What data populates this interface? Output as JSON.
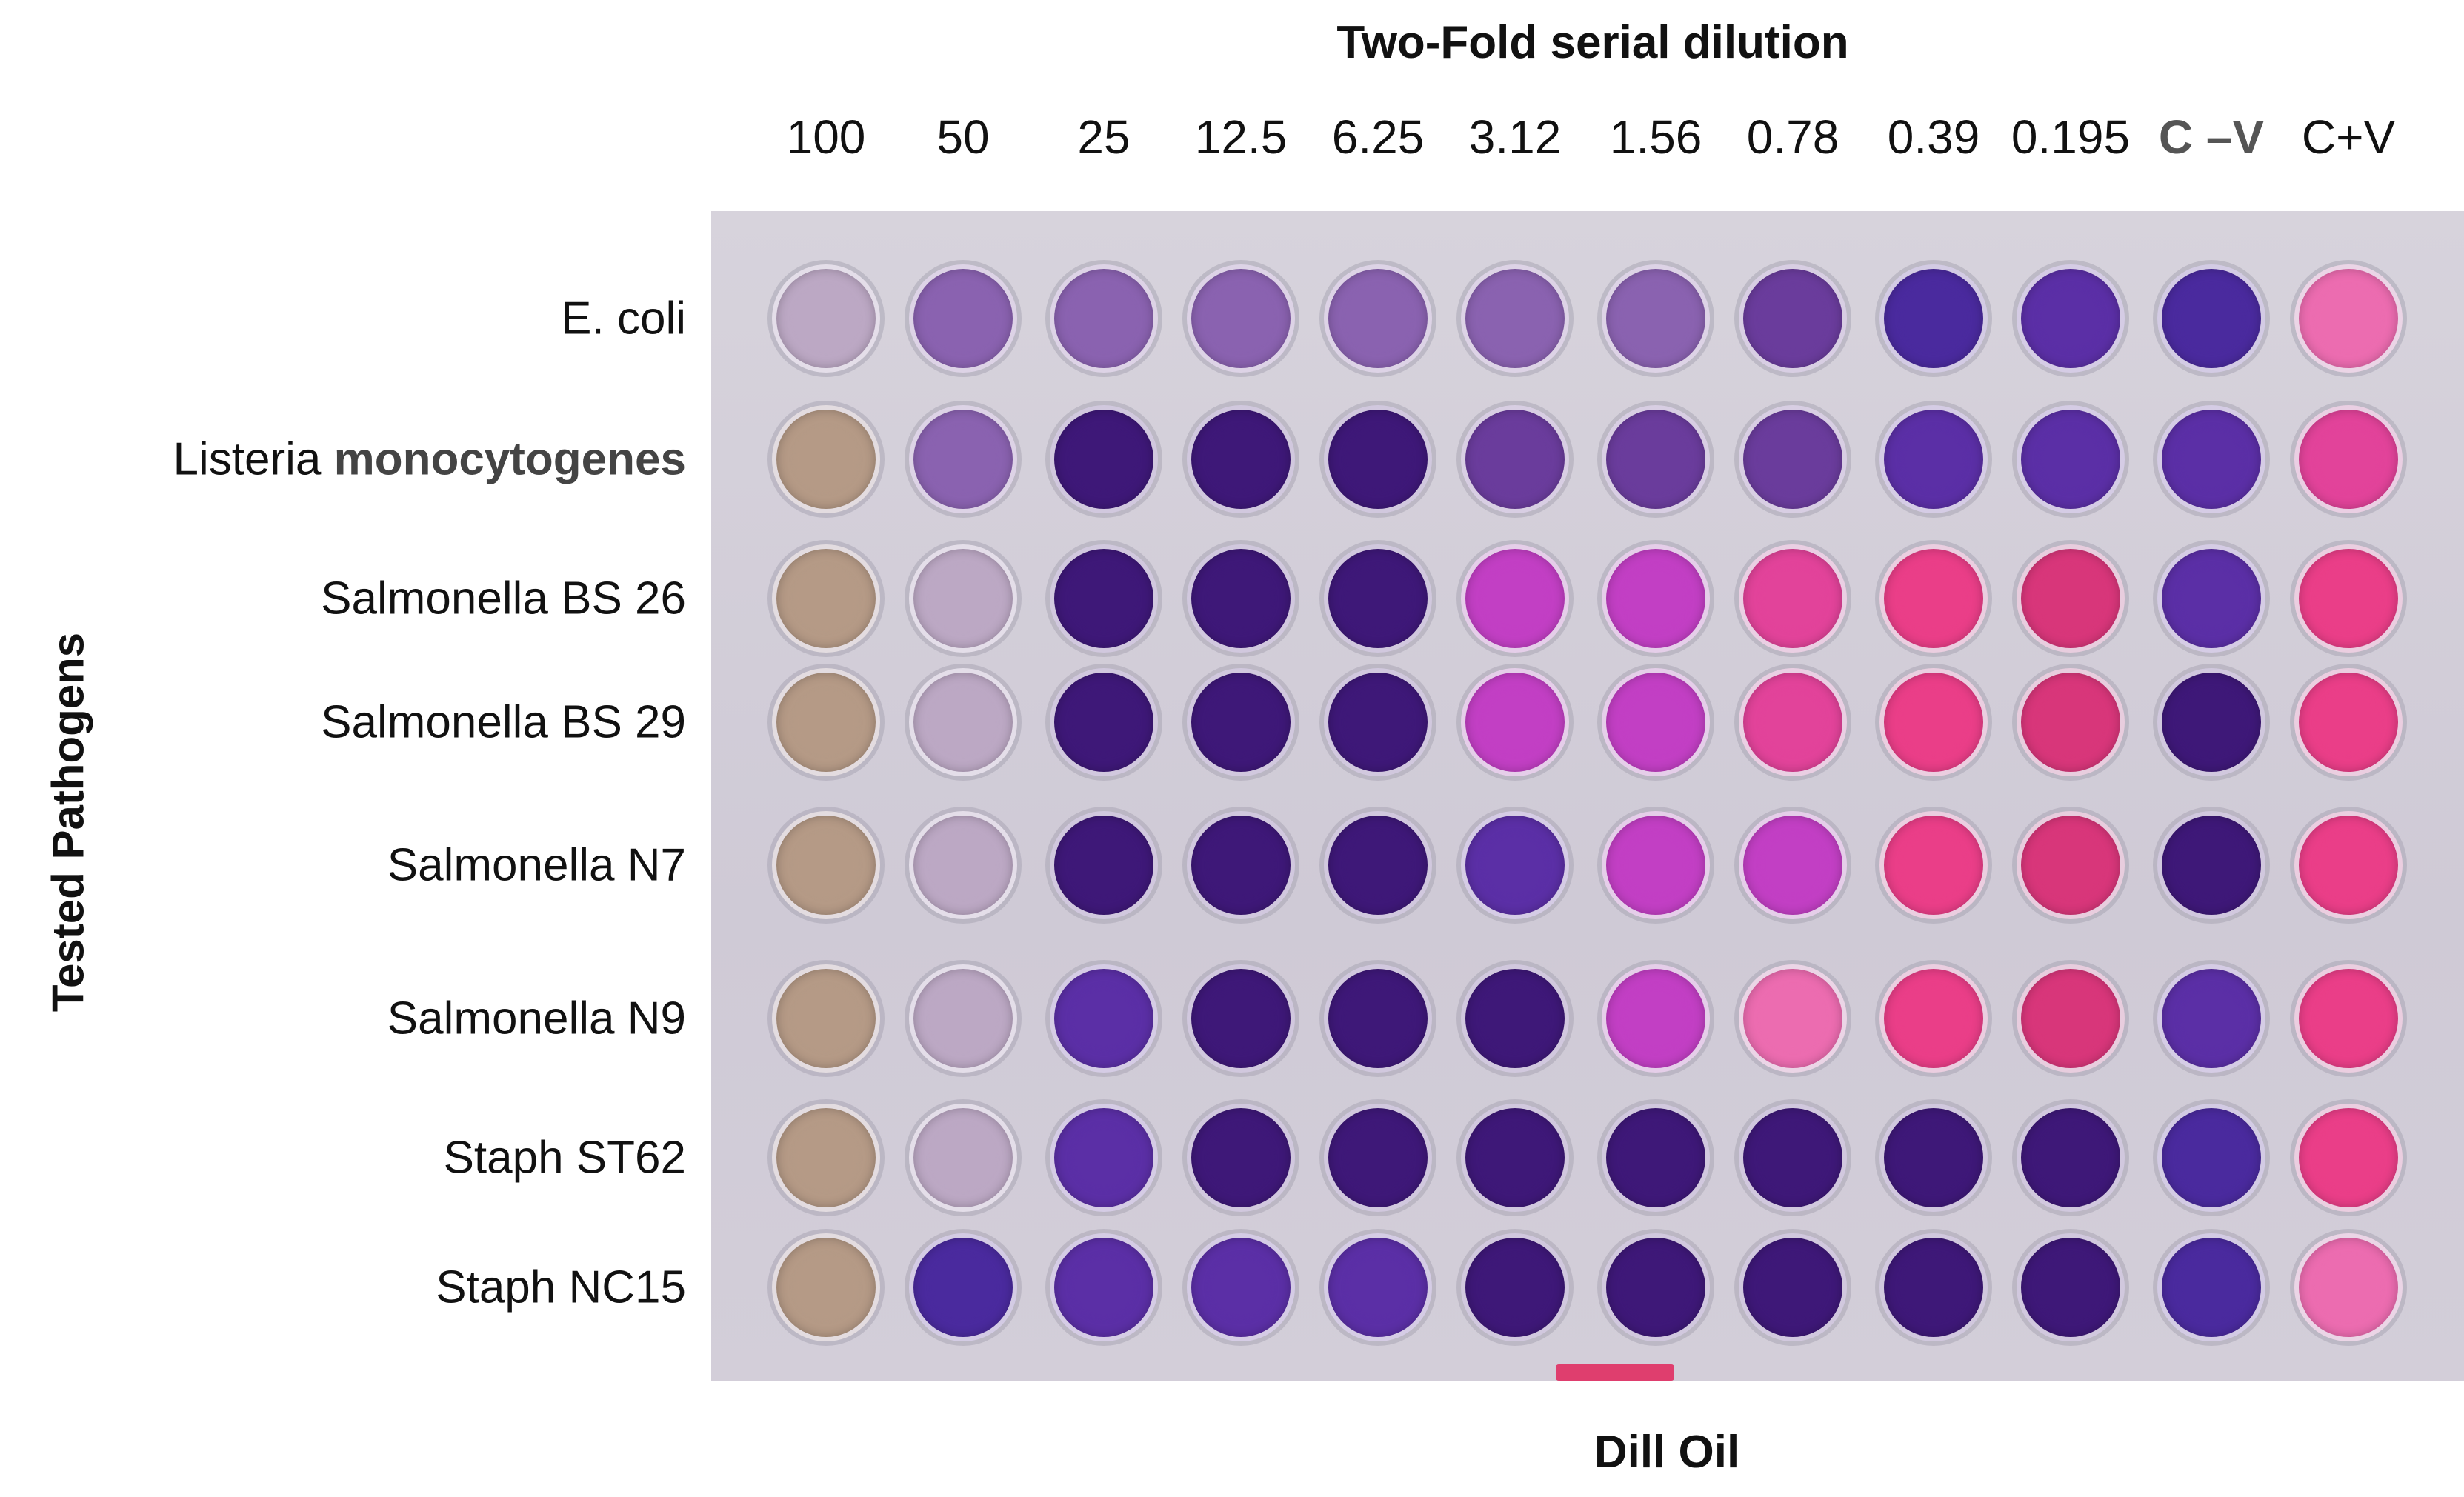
{
  "header": {
    "title": "Two-Fold serial dilution"
  },
  "columns": [
    {
      "label": "100",
      "control": false
    },
    {
      "label": "50",
      "control": false
    },
    {
      "label": "25",
      "control": false
    },
    {
      "label": "12.5",
      "control": false
    },
    {
      "label": "6.25",
      "control": false
    },
    {
      "label": "3.12",
      "control": false
    },
    {
      "label": "1.56",
      "control": false
    },
    {
      "label": "0.78",
      "control": false
    },
    {
      "label": "0.39",
      "control": false
    },
    {
      "label": "0.195",
      "control": false
    },
    {
      "label": "C –V",
      "control": true
    },
    {
      "label": "C+V",
      "control": false
    }
  ],
  "axis": {
    "y_label": "Tested Pathogens",
    "x_label": "Dill Oil"
  },
  "rows": [
    {
      "label": "E. coli",
      "label_b": ""
    },
    {
      "label": "Listeria ",
      "label_b": "monocytogenes"
    },
    {
      "label": "Salmonella  BS 26",
      "label_b": ""
    },
    {
      "label": "Salmonella  BS 29",
      "label_b": ""
    },
    {
      "label": "Salmonella N7",
      "label_b": ""
    },
    {
      "label": "Salmonella N9",
      "label_b": ""
    },
    {
      "label": "Staph ST62",
      "label_b": ""
    },
    {
      "label": "Staph NC15",
      "label_b": ""
    }
  ],
  "palette": {
    "tan": "#b59a86",
    "pale": "#bca8c4",
    "lilac": "#8a62b0",
    "purple": "#6a3c9c",
    "deep": "#3e1878",
    "blue": "#4a2a9e",
    "violet": "#5b2fa6",
    "magenta": "#c23fc4",
    "pink": "#e2439a",
    "hotpink": "#ea3e88",
    "rose": "#d8367a",
    "lightpink": "#ec6cb0"
  },
  "wells": [
    [
      "pale",
      "lilac",
      "lilac",
      "lilac",
      "lilac",
      "lilac",
      "lilac",
      "purple",
      "blue",
      "violet",
      "blue",
      "lightpink"
    ],
    [
      "tan",
      "lilac",
      "deep",
      "deep",
      "deep",
      "purple",
      "purple",
      "purple",
      "violet",
      "violet",
      "violet",
      "pink"
    ],
    [
      "tan",
      "pale",
      "deep",
      "deep",
      "deep",
      "magenta",
      "magenta",
      "pink",
      "hotpink",
      "rose",
      "violet",
      "hotpink"
    ],
    [
      "tan",
      "pale",
      "deep",
      "deep",
      "deep",
      "magenta",
      "magenta",
      "pink",
      "hotpink",
      "rose",
      "deep",
      "hotpink"
    ],
    [
      "tan",
      "pale",
      "deep",
      "deep",
      "deep",
      "violet",
      "magenta",
      "magenta",
      "hotpink",
      "rose",
      "deep",
      "hotpink"
    ],
    [
      "tan",
      "pale",
      "violet",
      "deep",
      "deep",
      "deep",
      "magenta",
      "lightpink",
      "hotpink",
      "rose",
      "violet",
      "hotpink"
    ],
    [
      "tan",
      "pale",
      "violet",
      "deep",
      "deep",
      "deep",
      "deep",
      "deep",
      "deep",
      "deep",
      "blue",
      "hotpink"
    ],
    [
      "tan",
      "blue",
      "violet",
      "violet",
      "violet",
      "deep",
      "deep",
      "deep",
      "deep",
      "deep",
      "blue",
      "lightpink"
    ]
  ]
}
